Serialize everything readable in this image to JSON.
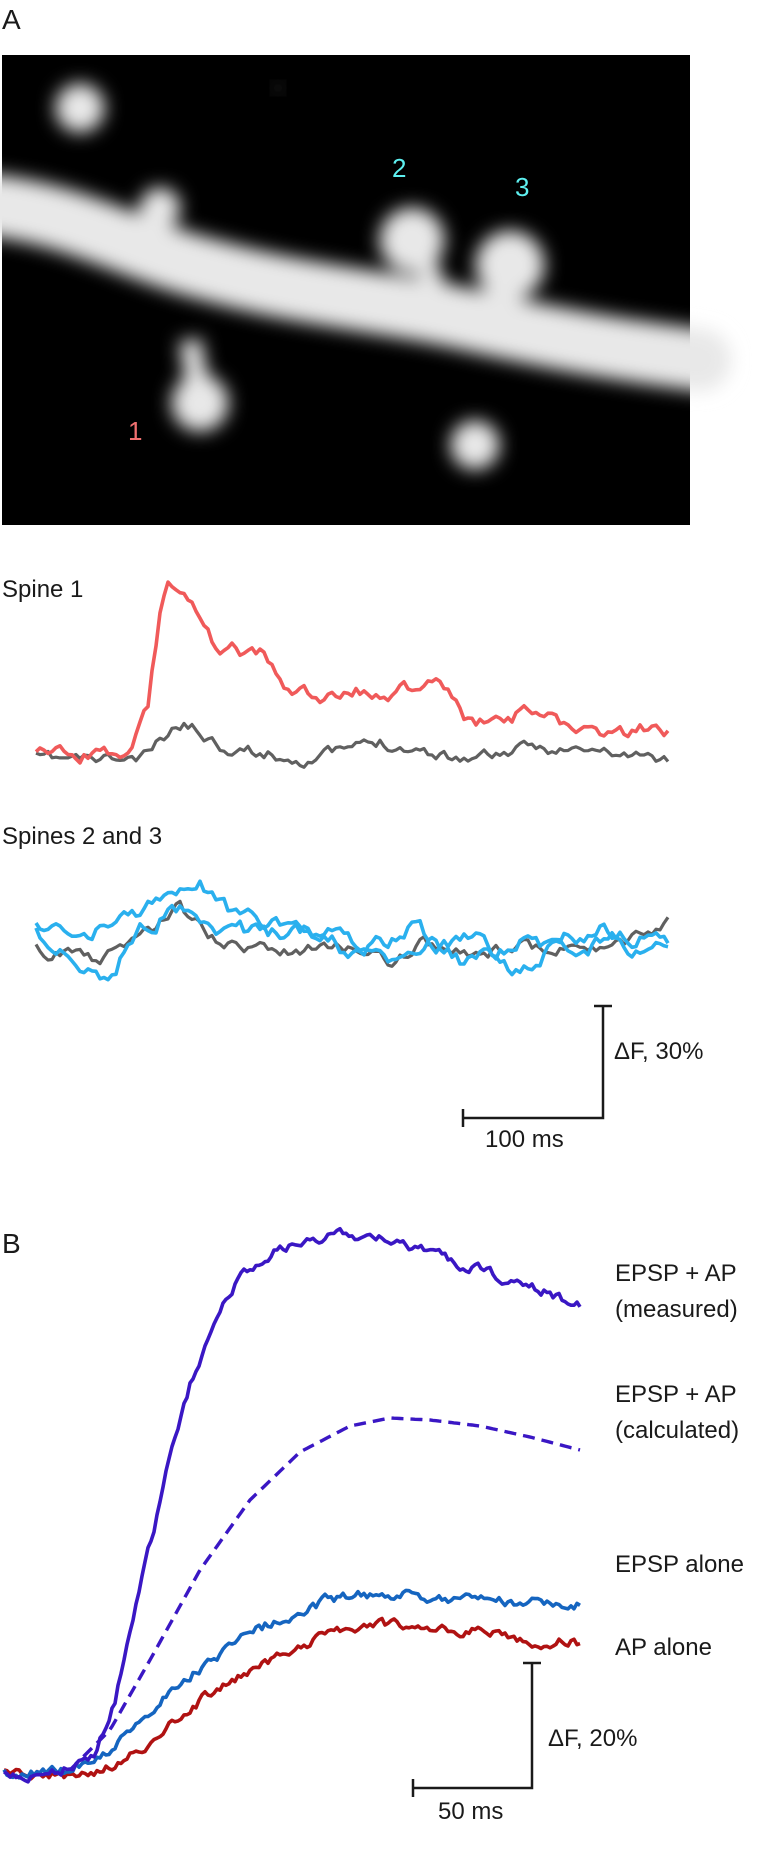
{
  "panel_a": {
    "label": "A",
    "spine_labels": [
      {
        "text": "1",
        "color": "#f07070"
      },
      {
        "text": "2",
        "color": "#5ef0f0"
      },
      {
        "text": "3",
        "color": "#5ef0f0"
      }
    ],
    "trace_titles": [
      "Spine 1",
      "Spines 2 and 3"
    ],
    "scale_bar": {
      "y_label": "ΔF, 30%",
      "x_label": "100 ms"
    }
  },
  "panel_b": {
    "label": "B",
    "trace_labels": {
      "measured_1": "EPSP + AP",
      "measured_2": "(measured)",
      "calculated_1": "EPSP + AP",
      "calculated_2": "(calculated)",
      "epsp": "EPSP alone",
      "ap": "AP alone"
    },
    "scale_bar": {
      "y_label": "ΔF, 20%",
      "x_label": "50 ms"
    }
  },
  "colors": {
    "spine1": "#f05a5a",
    "control": "#606060",
    "spines23": "#2ab0ee",
    "measured": "#3a17c4",
    "epsp": "#1565c0",
    "ap": "#b01212",
    "dendrite": "#e4e4e4"
  }
}
